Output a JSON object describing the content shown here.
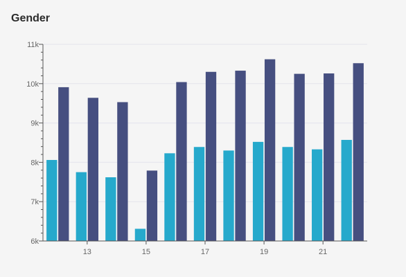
{
  "chart_data": {
    "type": "bar",
    "title": "Gender",
    "xlabel": "",
    "ylabel": "",
    "x": [
      12,
      13,
      14,
      15,
      16,
      17,
      18,
      19,
      20,
      21,
      22
    ],
    "x_tick_labels": [
      "13",
      "15",
      "17",
      "19",
      "21"
    ],
    "x_tick_values": [
      13,
      15,
      17,
      19,
      21
    ],
    "y_tick_labels": [
      "6k",
      "7k",
      "8k",
      "9k",
      "10k",
      "11k"
    ],
    "y_tick_values": [
      6000,
      7000,
      8000,
      9000,
      10000,
      11000
    ],
    "ylim": [
      6000,
      11000
    ],
    "grid": true,
    "legend": "none",
    "series": [
      {
        "color": "#26a9cc",
        "values": [
          8060,
          7750,
          7620,
          6310,
          8230,
          8390,
          8300,
          8520,
          8390,
          8330,
          8570
        ]
      },
      {
        "color": "#464f80",
        "values": [
          9910,
          9640,
          9530,
          7790,
          10040,
          10300,
          10330,
          10620,
          10250,
          10260,
          10520
        ]
      }
    ]
  }
}
